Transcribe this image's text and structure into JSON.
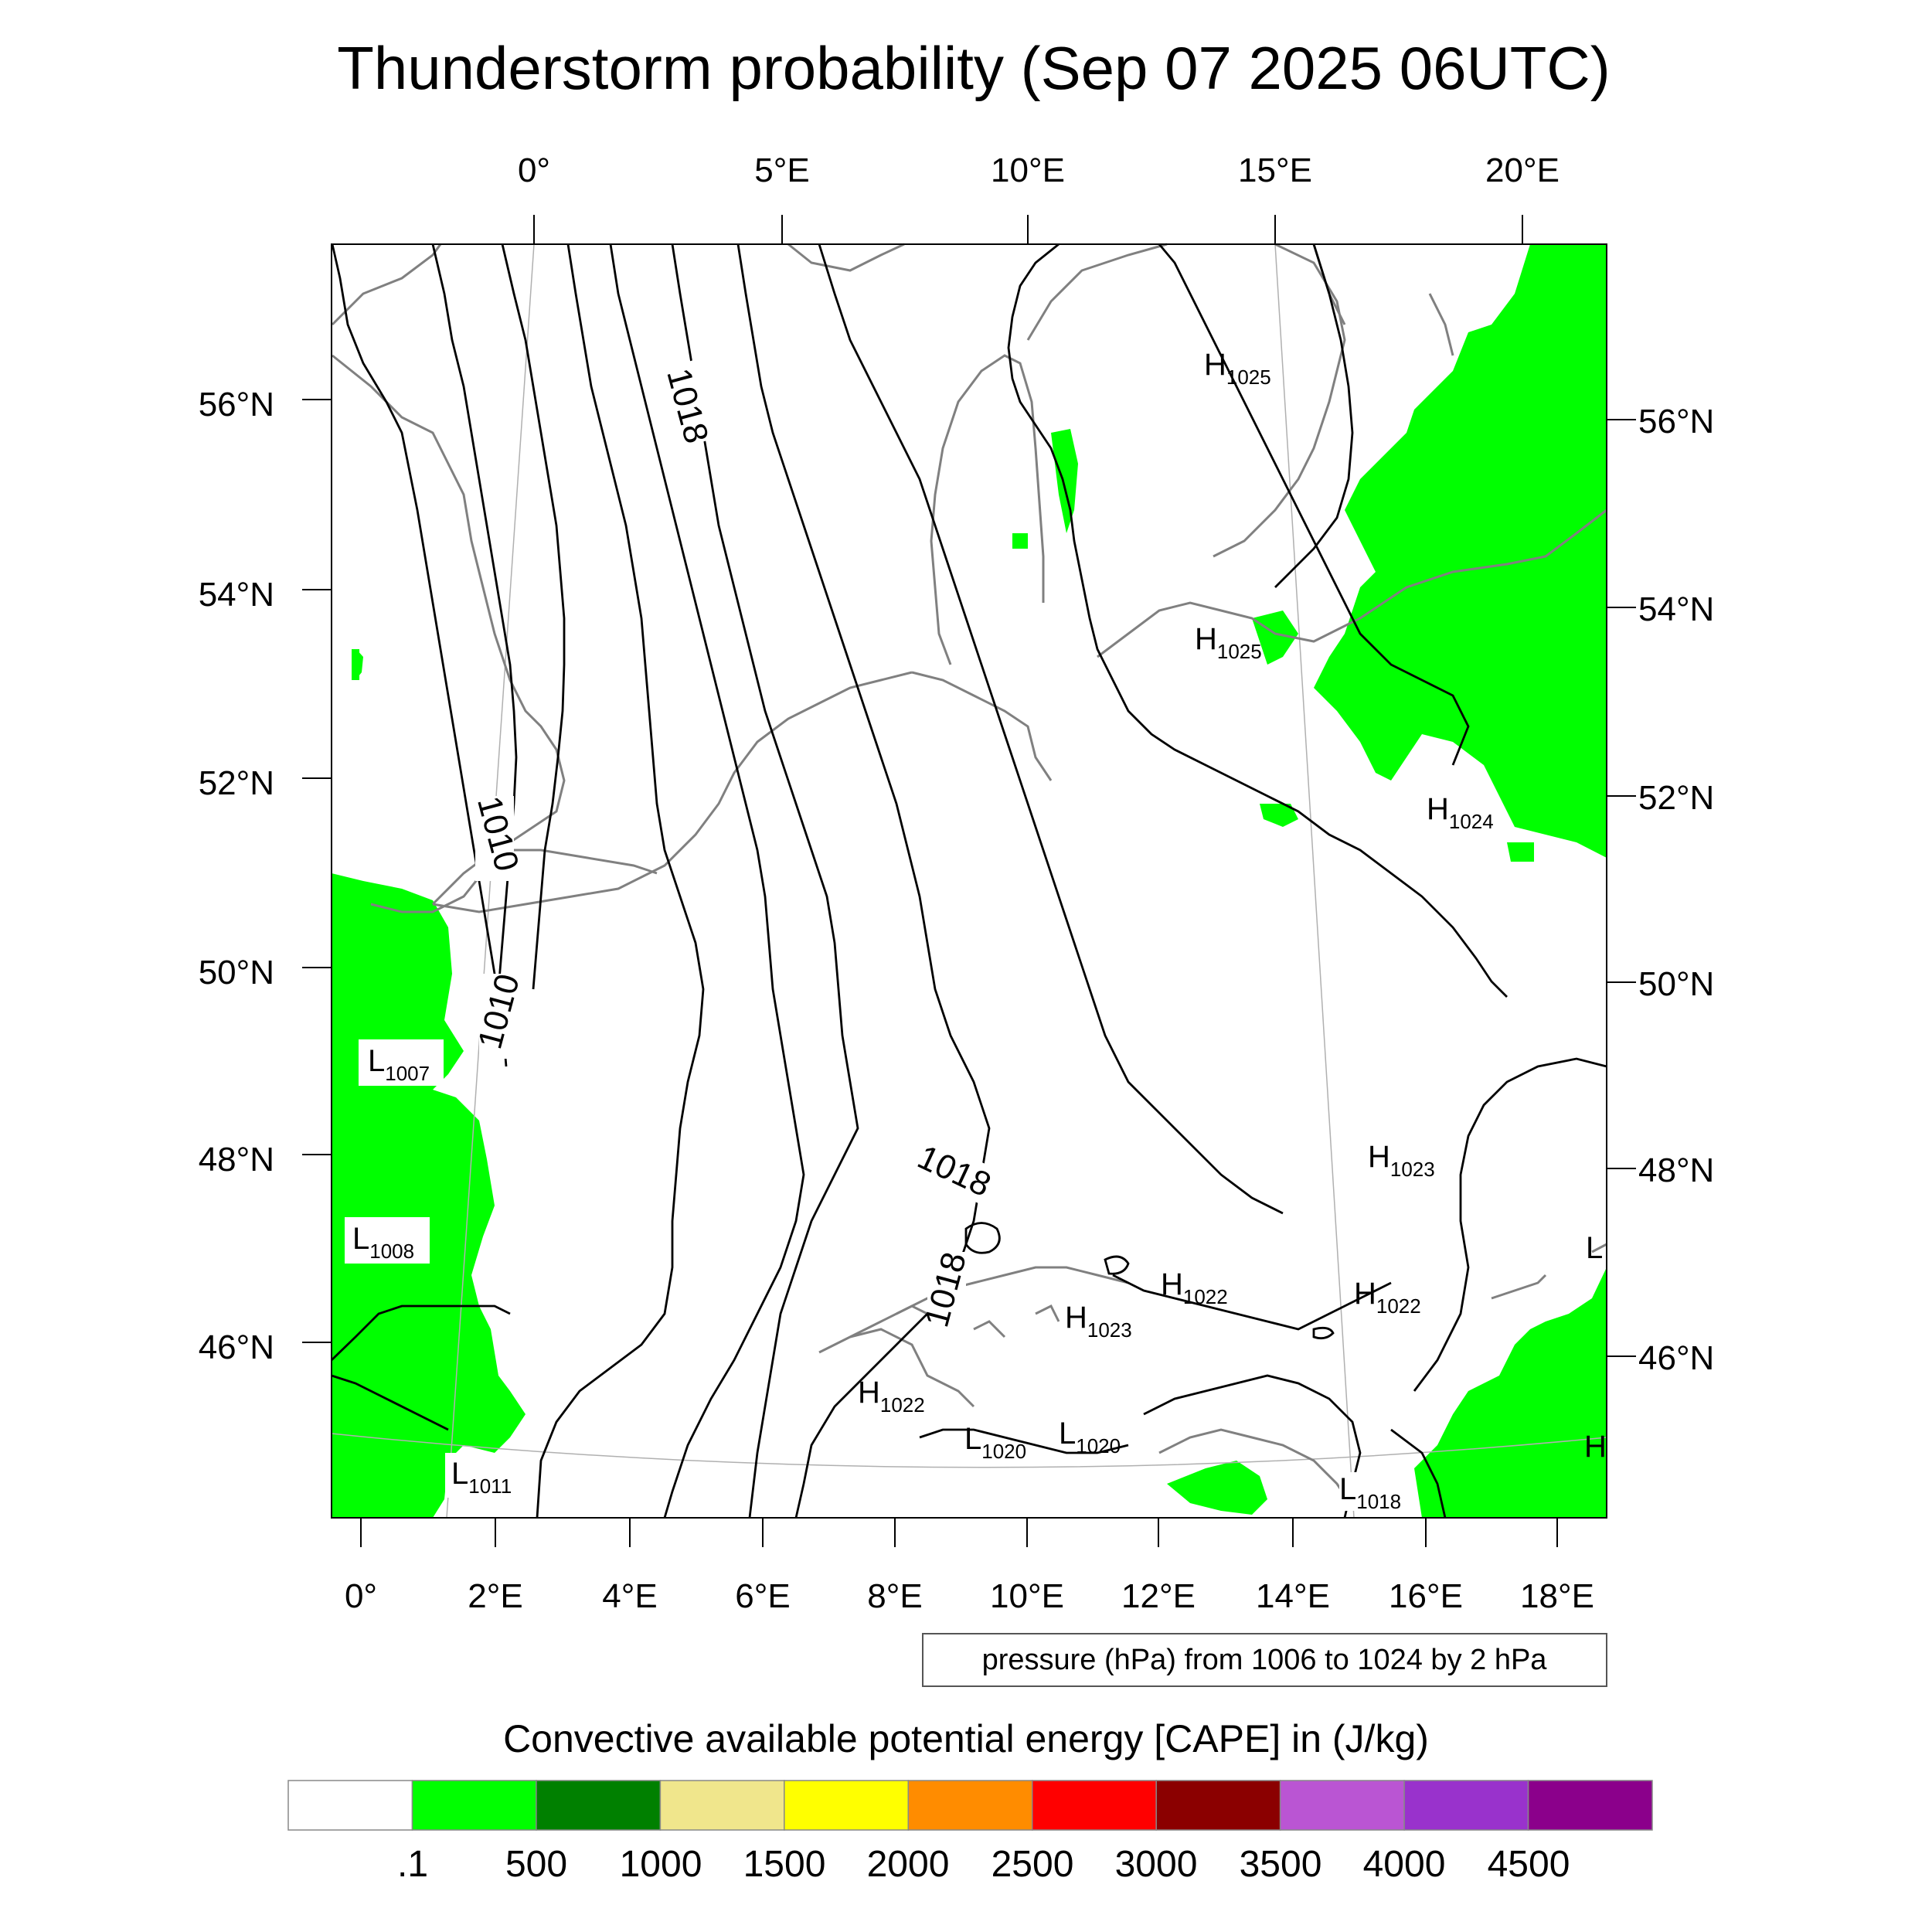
{
  "title": "Thunderstorm probability (Sep 07 2025 06UTC)",
  "top_lon_labels": [
    "0°",
    "5°E",
    "10°E",
    "15°E",
    "20°E"
  ],
  "bottom_lon_labels": [
    "0°",
    "2°E",
    "4°E",
    "6°E",
    "8°E",
    "10°E",
    "12°E",
    "14°E",
    "16°E",
    "18°E"
  ],
  "left_lat_labels": [
    "56°N",
    "54°N",
    "52°N",
    "50°N",
    "48°N",
    "46°N"
  ],
  "right_lat_labels": [
    "56°N",
    "54°N",
    "52°N",
    "50°N",
    "48°N",
    "46°N"
  ],
  "pressure_centers": [
    {
      "type": "H",
      "value": "1025"
    },
    {
      "type": "H",
      "value": "1025"
    },
    {
      "type": "H",
      "value": "1024"
    },
    {
      "type": "L",
      "value": "1007"
    },
    {
      "type": "H",
      "value": "1023"
    },
    {
      "type": "L",
      "value": "1008"
    },
    {
      "type": "H",
      "value": "1022"
    },
    {
      "type": "H",
      "value": "1022"
    },
    {
      "type": "H",
      "value": "1023"
    },
    {
      "type": "H",
      "value": "1022"
    },
    {
      "type": "L",
      "value": "1020"
    },
    {
      "type": "L",
      "value": "1020"
    },
    {
      "type": "L",
      "value": "1011"
    },
    {
      "type": "L",
      "value": "1018"
    },
    {
      "type": "L",
      "value": ""
    },
    {
      "type": "H",
      "value": ""
    }
  ],
  "isobar_labels": [
    "1018",
    "1010",
    "1010",
    "1018",
    "1018"
  ],
  "contour_note": "pressure (hPa) from 1006 to 1024 by 2 hPa",
  "colorbar": {
    "title": "Convective available potential energy [CAPE] in (J/kg)",
    "labels": [
      ".1",
      "500",
      "1000",
      "1500",
      "2000",
      "2500",
      "3000",
      "3500",
      "4000",
      "4500"
    ],
    "colors": [
      "#ffffff",
      "#00ff00",
      "#008000",
      "#f0e68c",
      "#ffff00",
      "#ff8c00",
      "#ff0000",
      "#8b0000",
      "#ba55d3",
      "#9932cc",
      "#8b008b"
    ]
  },
  "colors": {
    "cape_low": "#00ff00",
    "isobar": "#000000",
    "coastline": "#808080",
    "frame": "#000000"
  }
}
